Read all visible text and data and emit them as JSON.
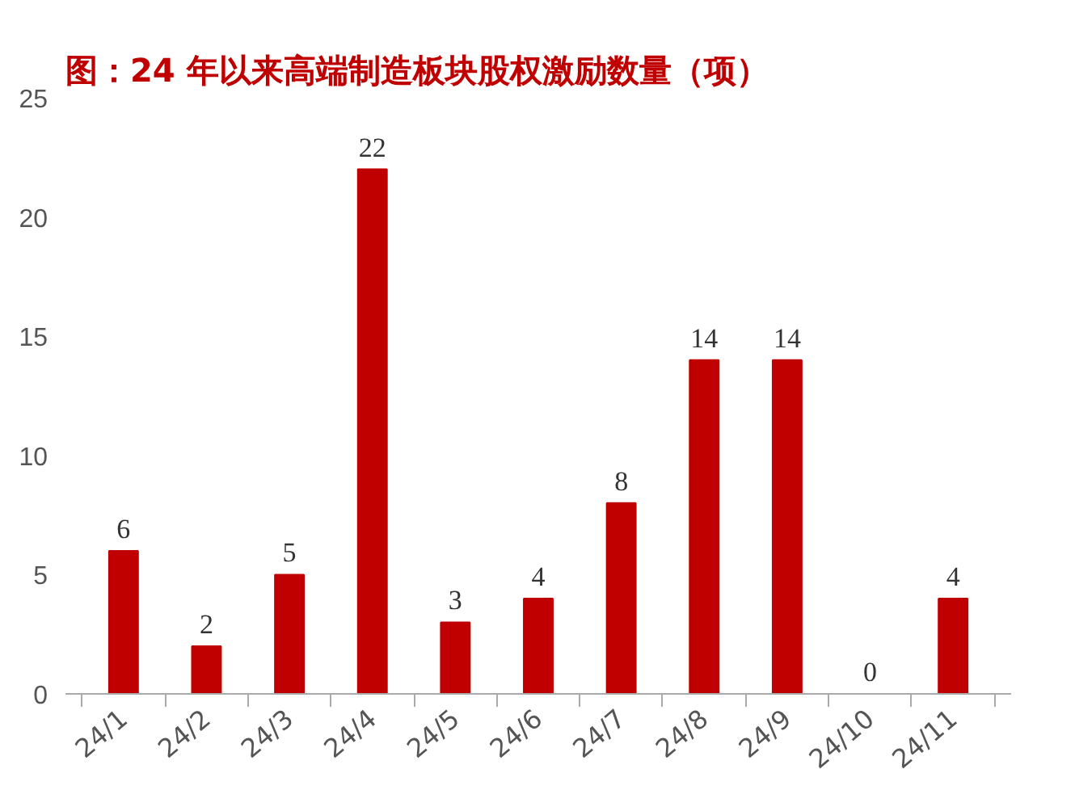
{
  "chart_data": {
    "type": "bar",
    "title": "图：24 年以来高端制造板块股权激励数量（项）",
    "categories": [
      "24/1",
      "24/2",
      "24/3",
      "24/4",
      "24/5",
      "24/6",
      "24/7",
      "24/8",
      "24/9",
      "24/10",
      "24/11"
    ],
    "values": [
      6,
      2,
      5,
      22,
      3,
      4,
      8,
      14,
      14,
      0,
      4
    ],
    "color": "#c00000",
    "ylim": [
      0,
      25
    ],
    "yticks": [
      0,
      5,
      10,
      15,
      20,
      25
    ],
    "grid": false,
    "data_labels": true
  }
}
